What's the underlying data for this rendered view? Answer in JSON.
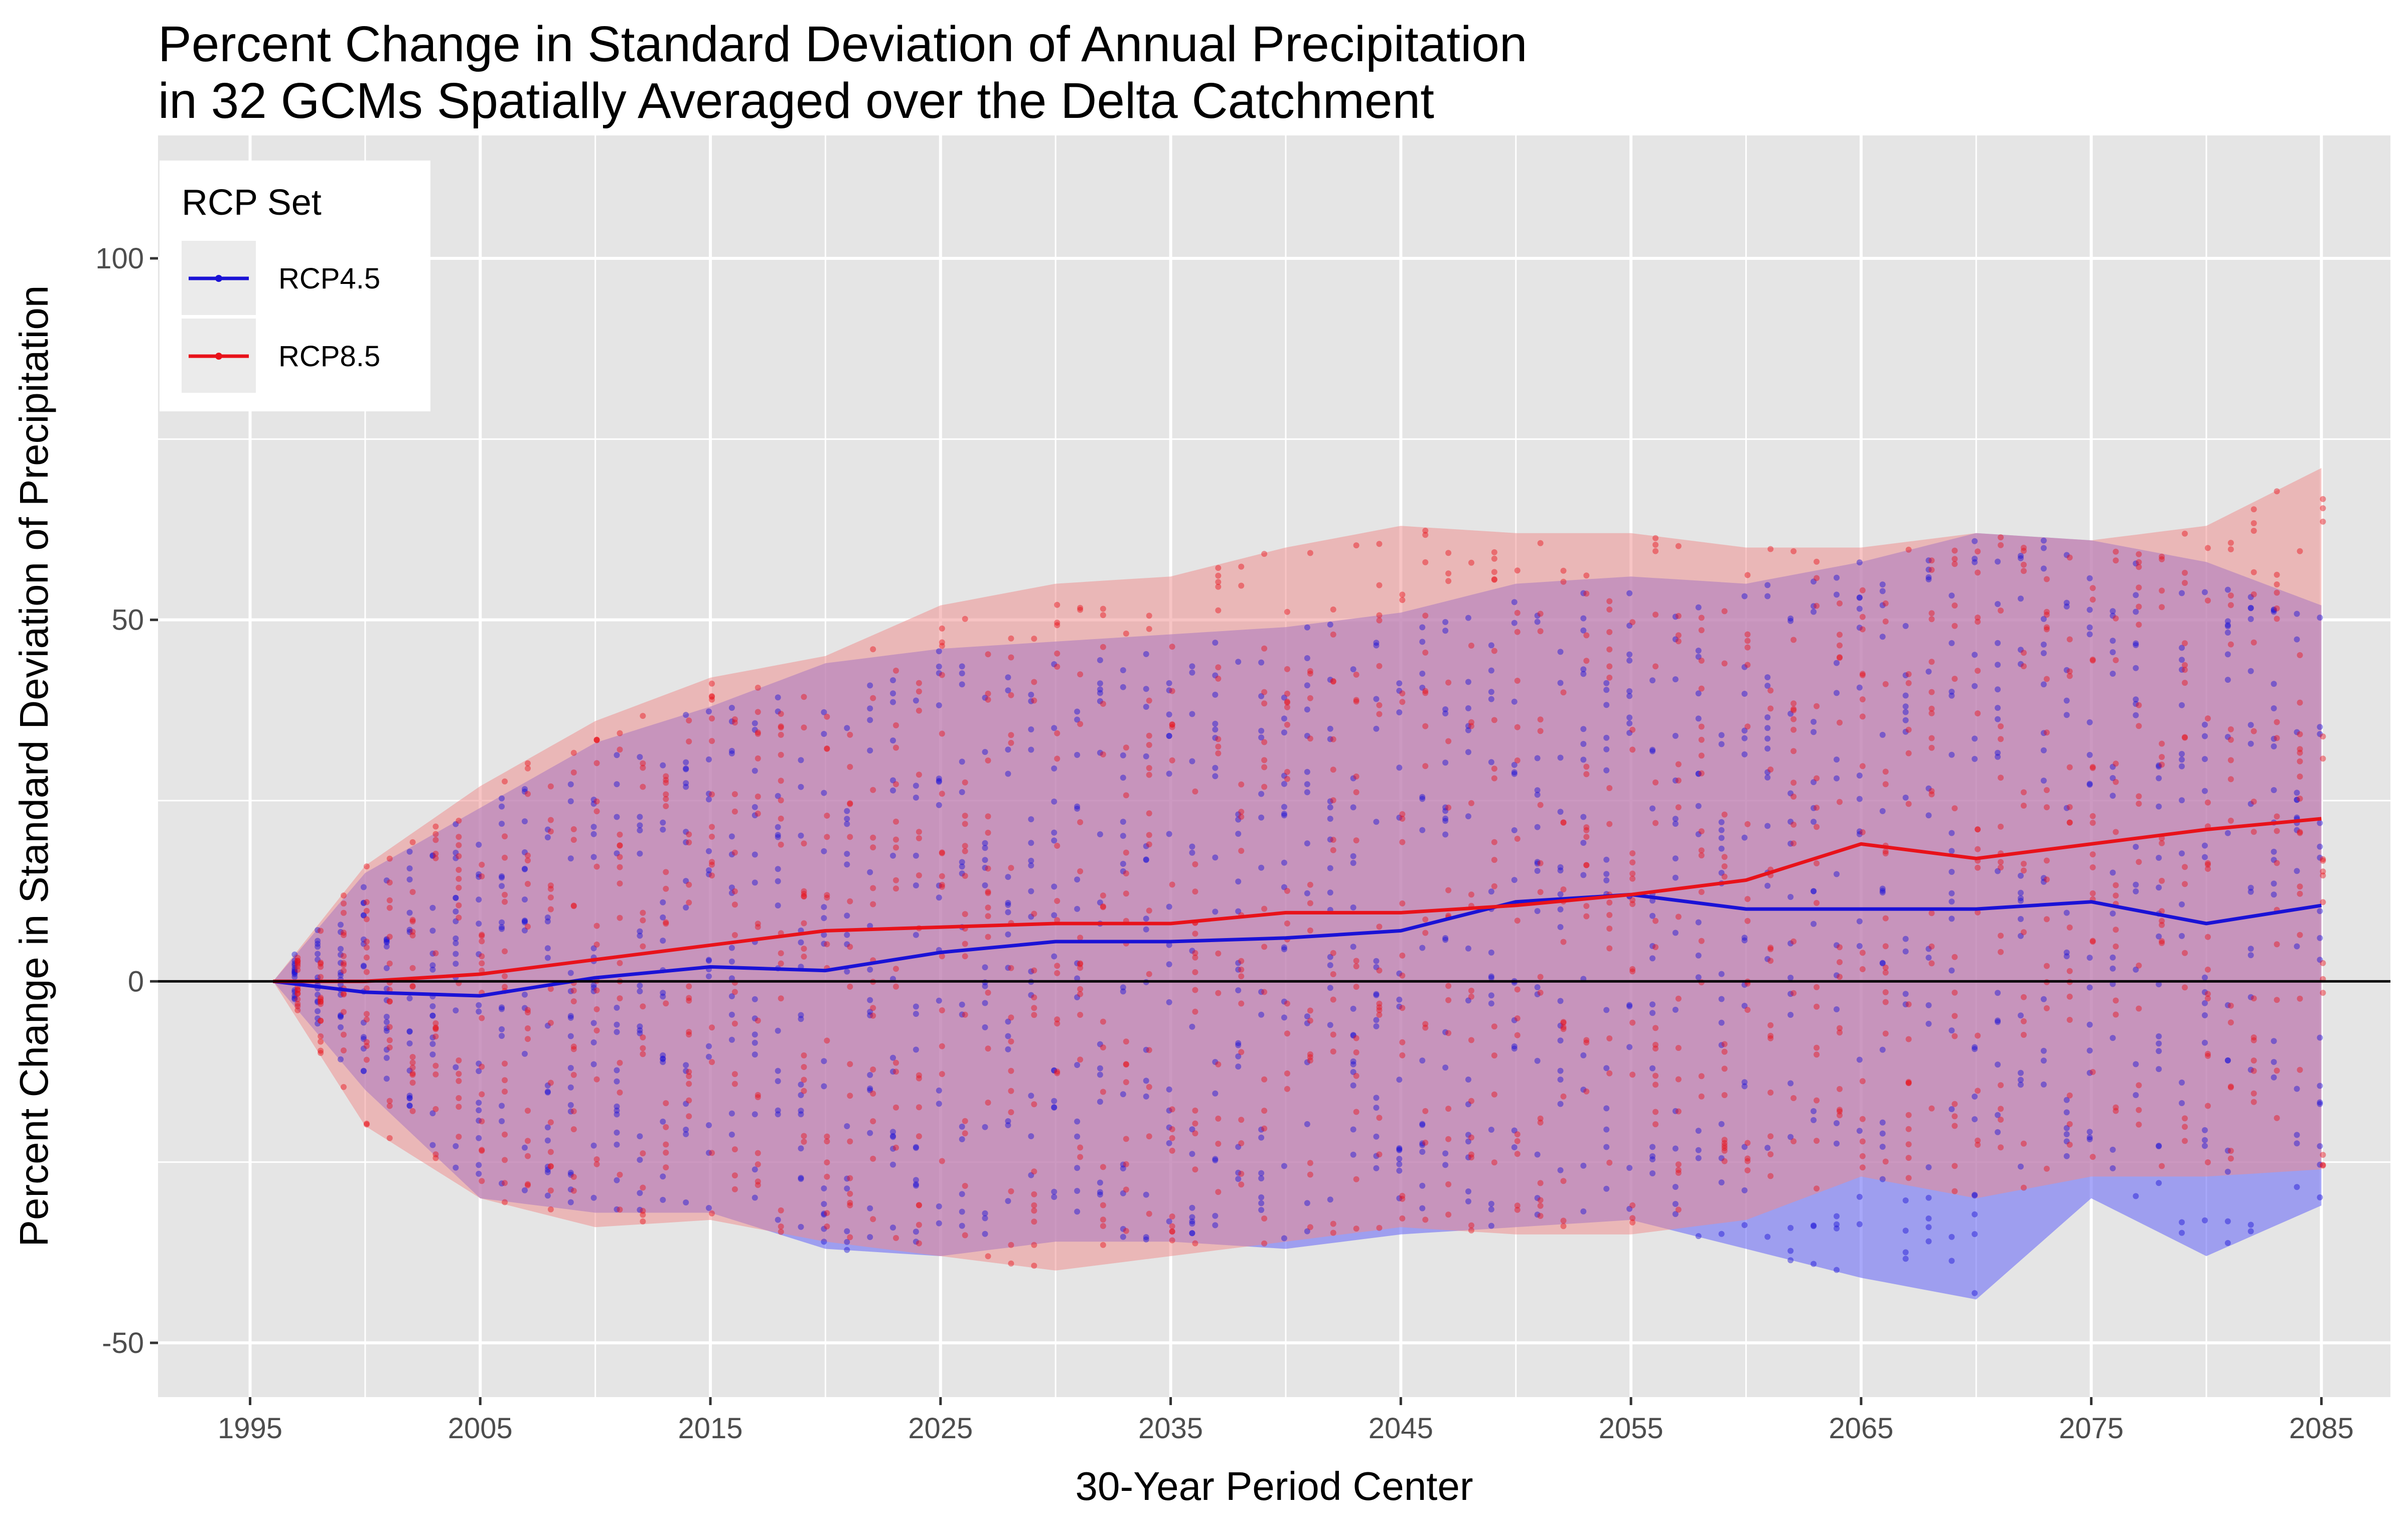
{
  "chart_data": {
    "type": "line",
    "title": "Percent Change in Standard Deviation of Annual Precipitation",
    "subtitle": "in 32 GCMs Spatially Averaged over the Delta Catchment",
    "xlabel": "30-Year Period Center",
    "ylabel": "Percent Change in Standard Deviation of Precipitation",
    "xlim": [
      1991,
      2088
    ],
    "ylim": [
      -57.5,
      117
    ],
    "x_ticks": [
      1995,
      2005,
      2015,
      2025,
      2035,
      2045,
      2055,
      2065,
      2075,
      2085
    ],
    "x_tick_labels": [
      "1995",
      "2005",
      "2015",
      "2025",
      "2035",
      "2045",
      "2055",
      "2065",
      "2075",
      "2085"
    ],
    "y_ticks": [
      -50,
      0,
      50,
      100
    ],
    "y_tick_labels": [
      "-50",
      "0",
      "50",
      "100"
    ],
    "grid": true,
    "reference_line_y": 0,
    "legend": {
      "title": "RCP Set",
      "position": "top-left",
      "entries": [
        "RCP4.5",
        "RCP8.5"
      ]
    },
    "colors": {
      "RCP4.5": "#1a12d6",
      "RCP8.5": "#e8121a",
      "band_RCP4.5": "#6e6ef5",
      "band_RCP8.5": "#f08a8a",
      "panel": "#e5e5e5",
      "grid": "#ffffff"
    },
    "x": [
      1996,
      2000,
      2005,
      2010,
      2015,
      2020,
      2025,
      2030,
      2035,
      2040,
      2045,
      2050,
      2055,
      2060,
      2065,
      2070,
      2075,
      2080,
      2085
    ],
    "series": [
      {
        "name": "RCP4.5",
        "mean": [
          0,
          -1.5,
          -2,
          0.5,
          2,
          1.5,
          4,
          5.5,
          5.5,
          6,
          7,
          11,
          12,
          10,
          10,
          10,
          11,
          8,
          10.5
        ],
        "band_upper": [
          0,
          15,
          24,
          33,
          38,
          44,
          46,
          47,
          48,
          49,
          51,
          55,
          56,
          55,
          58,
          62,
          61,
          58,
          52
        ],
        "band_lower": [
          0,
          -15,
          -30,
          -32,
          -32,
          -37,
          -38,
          -36,
          -36,
          -37,
          -35,
          -34,
          -33,
          -37,
          -41,
          -44,
          -30,
          -38,
          -31
        ]
      },
      {
        "name": "RCP8.5",
        "mean": [
          0,
          0,
          1,
          3,
          5,
          7,
          7.5,
          8,
          8,
          9.5,
          9.5,
          10.5,
          12,
          14,
          19,
          17,
          19,
          21,
          22.5
        ],
        "band_upper": [
          0,
          16,
          27,
          36,
          42,
          45,
          52,
          55,
          56,
          60,
          63,
          62,
          62,
          60,
          60,
          62,
          61,
          63,
          71
        ],
        "band_lower": [
          0,
          -20,
          -30,
          -34,
          -33,
          -36,
          -38,
          -40,
          -38,
          -36,
          -34,
          -35,
          -35,
          -33,
          -27,
          -30,
          -27,
          -27,
          -26
        ]
      }
    ]
  }
}
